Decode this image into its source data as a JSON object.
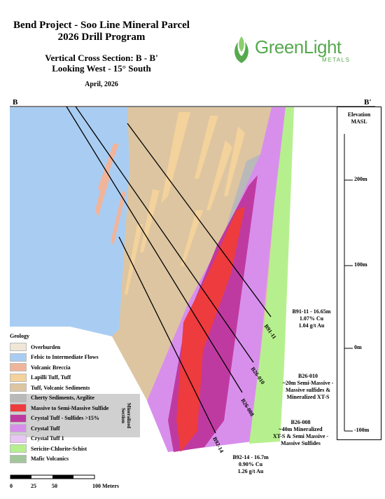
{
  "header": {
    "title_line1": "Bend Project - Soo Line Mineral Parcel",
    "title_line2": "2026 Drill Program",
    "section_line1": "Vertical Cross Section: B - B'",
    "section_line2": "Looking West - 15° South",
    "date": "April, 2026"
  },
  "logo": {
    "name": "GreenLight",
    "sub": "METALS"
  },
  "section_ends": {
    "left": "B",
    "right": "B'"
  },
  "elevation": {
    "title_line1": "Elevation",
    "title_line2": "MASL",
    "ticks": [
      "200m",
      "100m",
      "0m",
      "-100m"
    ]
  },
  "drillholes": [
    {
      "id": "B91-11",
      "label": "B91-11"
    },
    {
      "id": "B26-010",
      "label": "B26-010"
    },
    {
      "id": "B26-008",
      "label": "B26-008"
    },
    {
      "id": "B92-14",
      "label": "B92-14"
    }
  ],
  "annotations": [
    {
      "lines": [
        "B91-11 - 16.65m",
        "1.07% Cu",
        "1.04 g/t Au"
      ]
    },
    {
      "lines": [
        "B26-010",
        "~20m Semi-Massive -",
        "Massive sulfides &",
        "Mineralized XT-S"
      ]
    },
    {
      "lines": [
        "B26-008",
        "~40m Mineralized",
        "XT-S & Semi Massive -",
        "Massive Sulfides"
      ]
    },
    {
      "lines": [
        "B92-14 - 16.7m",
        "0.90% Cu",
        "1.26 g/t Au"
      ]
    }
  ],
  "legend": {
    "title": "Geology",
    "items": [
      {
        "label": "Overburden",
        "color": "#efe6d6"
      },
      {
        "label": "Felsic to Intermediate Flows",
        "color": "#a9cdf2"
      },
      {
        "label": "Volcanic Breccia",
        "color": "#f0b49a"
      },
      {
        "label": "Lapilli Tuff, Tuff",
        "color": "#f3d29c"
      },
      {
        "label": "Tuff, Volcanic Sediments",
        "color": "#ddc5a1"
      },
      {
        "label": "Cherty Sediments, Argilite",
        "color": "#b9b9b9"
      },
      {
        "label": "Massive to Semi-Massive Sulfide",
        "color": "#ee3b3d"
      },
      {
        "label": "Crystal Tuff - Sulfides >15%",
        "color": "#bf3aa0"
      },
      {
        "label": "Crystal Tuff",
        "color": "#d88fec"
      },
      {
        "label": "Crystal Tuff 1",
        "color": "#e8c6f3"
      },
      {
        "label": "Sericite-Chlorite-Schist",
        "color": "#b6f08e"
      },
      {
        "label": "Mafic Volcanics",
        "color": "#a2c79a"
      }
    ],
    "mineralized_label_line1": "Mineralized",
    "mineralized_label_line2": "Section"
  },
  "scale_bar": {
    "labels": [
      "0",
      "25",
      "50",
      "100 Meters"
    ]
  }
}
